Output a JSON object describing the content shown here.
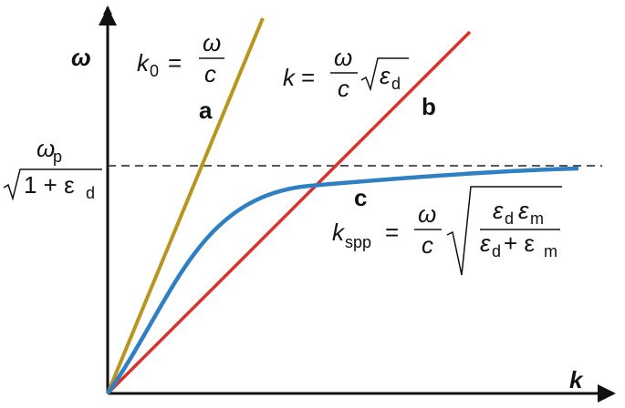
{
  "axes": {
    "y_label": "ω",
    "x_label": "k"
  },
  "light_line": {
    "label": "a",
    "lhs": "k",
    "lhs_sub": "0",
    "eq": "=",
    "num": "ω",
    "den": "c"
  },
  "medium_line": {
    "label": "b",
    "lhs": "k",
    "eq": "=",
    "num": "ω",
    "den": "c",
    "root": "ε",
    "root_sub": "d"
  },
  "plasma_limit": {
    "num": "ω",
    "num_sub": "p",
    "den": "1 + ε",
    "den_sub": "d"
  },
  "spp_curve": {
    "label": "c",
    "lhs": "k",
    "lhs_sub": "spp",
    "eq": "=",
    "num": "ω",
    "den": "c",
    "inner_num_1": "ε",
    "inner_num_1_sub": "d",
    "inner_num_2": "ε",
    "inner_num_2_sub": "m",
    "inner_den_1": "ε",
    "inner_den_1_sub": "d",
    "inner_den_plus": "+ ε",
    "inner_den_2_sub": "m"
  }
}
